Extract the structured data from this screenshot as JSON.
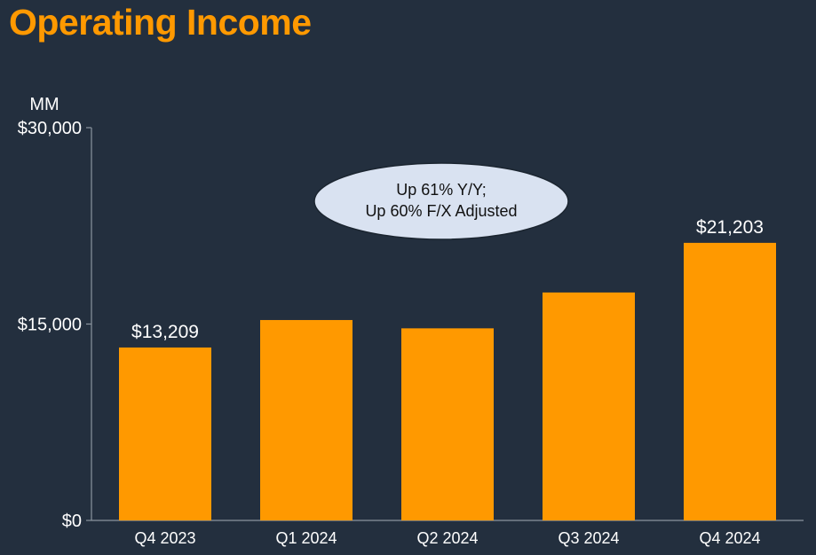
{
  "title": "Operating Income",
  "colors": {
    "background": "#232f3e",
    "accent": "#ff9900",
    "bar": "#ff9900",
    "axis": "#8a949e",
    "callout_fill": "#d9e2f1"
  },
  "chart_data": {
    "type": "bar",
    "title": "Operating Income",
    "unit_label": "MM",
    "categories": [
      "Q4 2023",
      "Q1 2024",
      "Q2 2024",
      "Q3 2024",
      "Q4 2024"
    ],
    "values": [
      13209,
      15307,
      14672,
      17411,
      21203
    ],
    "data_labels": [
      "$13,209",
      "",
      "",
      "",
      "$21,203"
    ],
    "ylim": [
      0,
      30000
    ],
    "yticks": [
      0,
      15000,
      30000
    ],
    "ytick_labels": [
      "$0",
      "$15,000",
      "$30,000"
    ],
    "grid": false,
    "legend": "none",
    "annotation": {
      "lines": [
        "Up 61% Y/Y;",
        "Up 60% F/X Adjusted"
      ]
    }
  }
}
